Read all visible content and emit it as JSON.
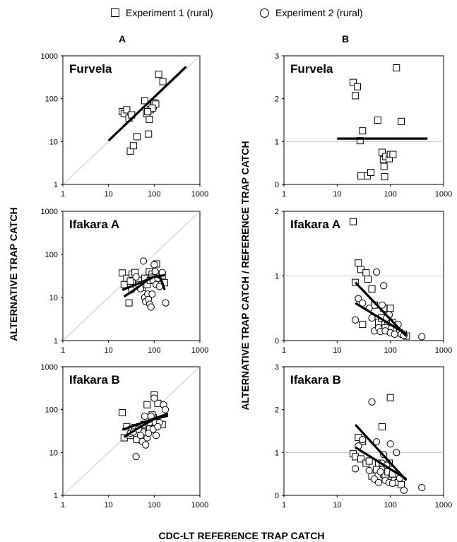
{
  "legend": {
    "exp1": "Experiment 1 (rural)",
    "exp2": "Experiment 2 (rural)"
  },
  "column_labels": {
    "A": "A",
    "B": "B"
  },
  "xlabel": "CDC-LT REFERENCE TRAP CATCH",
  "ylabel_left": "ALTERNATIVE TRAP CATCH",
  "ylabel_right": "ALTERNATIVE TRAP CATCH /  REFERENCE TRAP CATCH",
  "chart_data": [
    {
      "type": "scatter",
      "panel": "A",
      "title": "Furvela",
      "xscale": "log",
      "yscale": "log",
      "xlim": [
        1,
        1000
      ],
      "ylim": [
        1,
        1000
      ],
      "xticks": [
        "1",
        "10",
        "100",
        "1000"
      ],
      "yticks": [
        "1",
        "10",
        "100",
        "1000"
      ],
      "diagonal": true,
      "series": [
        {
          "name": "Experiment 1 (rural)",
          "marker": "square",
          "points": [
            [
              20,
              50
            ],
            [
              22,
              45
            ],
            [
              25,
              55
            ],
            [
              28,
              35
            ],
            [
              30,
              6
            ],
            [
              32,
              42
            ],
            [
              35,
              8
            ],
            [
              42,
              13
            ],
            [
              62,
              90
            ],
            [
              68,
              45
            ],
            [
              75,
              15
            ],
            [
              78,
              33
            ],
            [
              82,
              55
            ],
            [
              95,
              68
            ],
            [
              100,
              80
            ],
            [
              108,
              75
            ],
            [
              125,
              370
            ],
            [
              155,
              250
            ],
            [
              90,
              60
            ],
            [
              72,
              50
            ]
          ]
        }
      ],
      "fit_lines": [
        {
          "points": [
            [
              10,
              10.5
            ],
            [
              500,
              560
            ]
          ]
        }
      ]
    },
    {
      "type": "scatter",
      "panel": "B",
      "title": "Furvela",
      "xscale": "log",
      "yscale": "linear",
      "xlim": [
        1,
        1000
      ],
      "ylim": [
        0,
        3
      ],
      "xticks": [
        "1",
        "10",
        "100",
        "1000"
      ],
      "yticks": [
        "0",
        "1",
        "2",
        "3"
      ],
      "refline": 1,
      "series": [
        {
          "name": "Experiment 1 (rural)",
          "marker": "square",
          "points": [
            [
              20,
              2.38
            ],
            [
              22,
              2.07
            ],
            [
              24,
              2.28
            ],
            [
              27,
              1.02
            ],
            [
              30,
              1.25
            ],
            [
              28,
              0.2
            ],
            [
              37,
              0.2
            ],
            [
              43,
              0.28
            ],
            [
              58,
              1.5
            ],
            [
              70,
              0.75
            ],
            [
              74,
              0.58
            ],
            [
              76,
              0.42
            ],
            [
              78,
              0.18
            ],
            [
              82,
              0.65
            ],
            [
              95,
              0.6
            ],
            [
              100,
              0.7
            ],
            [
              112,
              0.7
            ],
            [
              130,
              2.72
            ],
            [
              160,
              1.47
            ]
          ]
        }
      ],
      "fit_lines": [
        {
          "points": [
            [
              10,
              1.07
            ],
            [
              500,
              1.07
            ]
          ]
        }
      ]
    },
    {
      "type": "scatter",
      "panel": "A",
      "title": "Ifakara A",
      "xscale": "log",
      "yscale": "log",
      "xlim": [
        1,
        1000
      ],
      "ylim": [
        1,
        1000
      ],
      "xticks": [
        "1",
        "10",
        "100",
        "1000"
      ],
      "yticks": [
        "1",
        "10",
        "100",
        "1000"
      ],
      "diagonal": true,
      "series": [
        {
          "name": "Experiment 1 (rural)",
          "marker": "square",
          "points": [
            [
              20,
              37
            ],
            [
              22,
              20
            ],
            [
              25,
              28
            ],
            [
              28,
              7.5
            ],
            [
              30,
              24
            ],
            [
              33,
              35
            ],
            [
              38,
              38
            ],
            [
              45,
              25
            ],
            [
              55,
              17
            ],
            [
              62,
              28
            ],
            [
              70,
              20
            ],
            [
              78,
              40
            ],
            [
              82,
              25
            ],
            [
              90,
              35
            ],
            [
              100,
              30
            ],
            [
              112,
              60
            ],
            [
              125,
              28
            ],
            [
              150,
              33
            ],
            [
              168,
              22
            ],
            [
              108,
              32
            ]
          ]
        },
        {
          "name": "Experiment 2 (rural)",
          "marker": "circle",
          "points": [
            [
              32,
              15
            ],
            [
              40,
              30
            ],
            [
              45,
              20
            ],
            [
              50,
              16
            ],
            [
              58,
              70
            ],
            [
              62,
              10
            ],
            [
              65,
              8
            ],
            [
              72,
              12
            ],
            [
              75,
              9
            ],
            [
              80,
              7
            ],
            [
              85,
              6
            ],
            [
              90,
              12
            ],
            [
              95,
              25
            ],
            [
              100,
              58
            ],
            [
              110,
              20
            ],
            [
              130,
              18
            ],
            [
              150,
              38
            ],
            [
              178,
              7.5
            ],
            [
              120,
              28
            ],
            [
              105,
              40
            ]
          ]
        }
      ],
      "fit_lines": [
        {
          "points": [
            [
              20,
              15
            ],
            [
              40,
              20
            ],
            [
              70,
              26
            ],
            [
              100,
              30
            ],
            [
              140,
              32
            ],
            [
              170,
              33
            ]
          ]
        },
        {
          "points": [
            [
              22,
              10.5
            ],
            [
              40,
              16
            ],
            [
              70,
              25
            ],
            [
              110,
              32
            ],
            [
              140,
              27
            ],
            [
              170,
              15
            ]
          ]
        }
      ]
    },
    {
      "type": "scatter",
      "panel": "B",
      "title": "Ifakara A",
      "xscale": "log",
      "yscale": "linear",
      "xlim": [
        1,
        1000
      ],
      "ylim": [
        0,
        2
      ],
      "xticks": [
        "1",
        "10",
        "100",
        "1000"
      ],
      "yticks": [
        "0",
        "1",
        "2"
      ],
      "refline": 1,
      "series": [
        {
          "name": "Experiment 1 (rural)",
          "marker": "square",
          "points": [
            [
              20,
              1.84
            ],
            [
              22,
              0.9
            ],
            [
              25,
              1.2
            ],
            [
              28,
              1.1
            ],
            [
              30,
              0.25
            ],
            [
              35,
              1.05
            ],
            [
              38,
              0.95
            ],
            [
              45,
              0.8
            ],
            [
              50,
              0.55
            ],
            [
              60,
              0.28
            ],
            [
              68,
              0.35
            ],
            [
              75,
              0.5
            ],
            [
              80,
              0.2
            ],
            [
              90,
              0.3
            ],
            [
              100,
              0.5
            ],
            [
              110,
              0.28
            ],
            [
              130,
              0.18
            ],
            [
              150,
              0.12
            ],
            [
              175,
              0.1
            ],
            [
              200,
              0.07
            ]
          ]
        },
        {
          "name": "Experiment 2 (rural)",
          "marker": "circle",
          "points": [
            [
              22,
              0.32
            ],
            [
              25,
              0.65
            ],
            [
              30,
              0.58
            ],
            [
              40,
              0.5
            ],
            [
              45,
              0.35
            ],
            [
              50,
              0.15
            ],
            [
              55,
              1.06
            ],
            [
              60,
              0.2
            ],
            [
              65,
              0.14
            ],
            [
              70,
              0.55
            ],
            [
              75,
              0.85
            ],
            [
              80,
              0.15
            ],
            [
              85,
              0.35
            ],
            [
              95,
              0.4
            ],
            [
              100,
              0.12
            ],
            [
              120,
              0.1
            ],
            [
              140,
              0.25
            ],
            [
              160,
              0.1
            ],
            [
              180,
              0.08
            ],
            [
              390,
              0.06
            ]
          ]
        }
      ],
      "fit_lines": [
        {
          "points": [
            [
              22,
              0.9
            ],
            [
              200,
              0.07
            ]
          ]
        },
        {
          "points": [
            [
              22,
              0.58
            ],
            [
              200,
              0.1
            ]
          ]
        }
      ]
    },
    {
      "type": "scatter",
      "panel": "A",
      "title": "Ifakara B",
      "xscale": "log",
      "yscale": "log",
      "xlim": [
        1,
        1000
      ],
      "ylim": [
        1,
        1000
      ],
      "xticks": [
        "1",
        "10",
        "100",
        "1000"
      ],
      "yticks": [
        "1",
        "10",
        "100",
        "1000"
      ],
      "diagonal": true,
      "series": [
        {
          "name": "Experiment 1 (rural)",
          "marker": "square",
          "points": [
            [
              20,
              85
            ],
            [
              22,
              22
            ],
            [
              25,
              40
            ],
            [
              30,
              25
            ],
            [
              33,
              35
            ],
            [
              38,
              38
            ],
            [
              42,
              20
            ],
            [
              48,
              40
            ],
            [
              55,
              30
            ],
            [
              60,
              45
            ],
            [
              70,
              130
            ],
            [
              75,
              40
            ],
            [
              80,
              35
            ],
            [
              90,
              50
            ],
            [
              95,
              65
            ],
            [
              100,
              220
            ],
            [
              110,
              55
            ],
            [
              120,
              140
            ],
            [
              150,
              45
            ],
            [
              90,
              75
            ]
          ]
        },
        {
          "name": "Experiment 2 (rural)",
          "marker": "circle",
          "points": [
            [
              30,
              28
            ],
            [
              35,
              30
            ],
            [
              40,
              8
            ],
            [
              45,
              35
            ],
            [
              50,
              25
            ],
            [
              55,
              18
            ],
            [
              62,
              70
            ],
            [
              65,
              15
            ],
            [
              70,
              22
            ],
            [
              75,
              28
            ],
            [
              80,
              50
            ],
            [
              85,
              70
            ],
            [
              95,
              35
            ],
            [
              100,
              185
            ],
            [
              105,
              50
            ],
            [
              110,
              25
            ],
            [
              130,
              50
            ],
            [
              160,
              130
            ],
            [
              175,
              100
            ],
            [
              120,
              40
            ]
          ]
        }
      ],
      "fit_lines": [
        {
          "points": [
            [
              20,
              34
            ],
            [
              200,
              80
            ]
          ]
        },
        {
          "points": [
            [
              22,
              23
            ],
            [
              50,
              40
            ],
            [
              100,
              60
            ],
            [
              200,
              72
            ]
          ]
        }
      ]
    },
    {
      "type": "scatter",
      "panel": "B",
      "title": "Ifakara B",
      "xscale": "log",
      "yscale": "linear",
      "xlim": [
        1,
        1000
      ],
      "ylim": [
        0,
        3
      ],
      "xticks": [
        "1",
        "10",
        "100",
        "1000"
      ],
      "yticks": [
        "0",
        "1",
        "2",
        "3"
      ],
      "refline": 1,
      "series": [
        {
          "name": "Experiment 1 (rural)",
          "marker": "square",
          "points": [
            [
              20,
              0.97
            ],
            [
              22,
              0.9
            ],
            [
              25,
              1.35
            ],
            [
              28,
              0.85
            ],
            [
              30,
              1.25
            ],
            [
              35,
              0.75
            ],
            [
              40,
              0.8
            ],
            [
              45,
              0.45
            ],
            [
              55,
              0.6
            ],
            [
              60,
              0.75
            ],
            [
              70,
              1.6
            ],
            [
              75,
              0.5
            ],
            [
              80,
              0.45
            ],
            [
              90,
              0.55
            ],
            [
              95,
              0.75
            ],
            [
              100,
              2.28
            ],
            [
              110,
              0.5
            ],
            [
              120,
              0.35
            ],
            [
              140,
              0.3
            ],
            [
              160,
              0.25
            ]
          ]
        },
        {
          "name": "Experiment 2 (rural)",
          "marker": "circle",
          "points": [
            [
              22,
              0.62
            ],
            [
              25,
              1.15
            ],
            [
              30,
              1.3
            ],
            [
              40,
              0.58
            ],
            [
              45,
              2.18
            ],
            [
              50,
              0.38
            ],
            [
              55,
              1.25
            ],
            [
              60,
              0.3
            ],
            [
              65,
              0.55
            ],
            [
              70,
              0.75
            ],
            [
              75,
              0.95
            ],
            [
              80,
              0.35
            ],
            [
              85,
              0.7
            ],
            [
              95,
              0.3
            ],
            [
              100,
              1.2
            ],
            [
              110,
              0.28
            ],
            [
              130,
              1.0
            ],
            [
              150,
              0.4
            ],
            [
              180,
              0.12
            ],
            [
              390,
              0.18
            ]
          ]
        }
      ],
      "fit_lines": [
        {
          "points": [
            [
              22,
              1.65
            ],
            [
              200,
              0.35
            ]
          ]
        },
        {
          "points": [
            [
              22,
              1.12
            ],
            [
              200,
              0.38
            ]
          ]
        }
      ]
    }
  ]
}
